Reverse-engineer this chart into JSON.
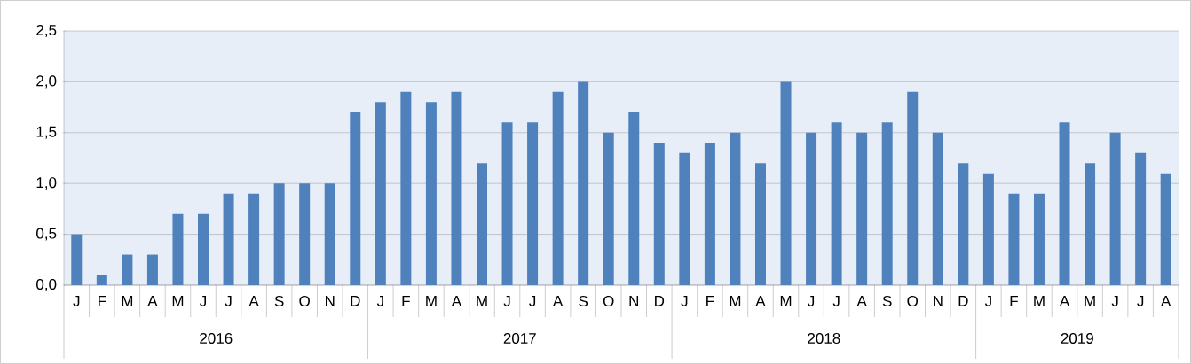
{
  "chart_data": {
    "type": "bar",
    "categories": [
      "J",
      "F",
      "M",
      "A",
      "M",
      "J",
      "J",
      "A",
      "S",
      "O",
      "N",
      "D",
      "J",
      "F",
      "M",
      "A",
      "M",
      "J",
      "J",
      "A",
      "S",
      "O",
      "N",
      "D",
      "J",
      "F",
      "M",
      "A",
      "M",
      "J",
      "J",
      "A",
      "S",
      "O",
      "N",
      "D",
      "J",
      "F",
      "M",
      "A",
      "M",
      "J",
      "J",
      "A"
    ],
    "values": [
      0.5,
      0.1,
      0.3,
      0.3,
      0.7,
      0.7,
      0.9,
      0.9,
      1.0,
      1.0,
      1.0,
      1.7,
      1.8,
      1.9,
      1.8,
      1.9,
      1.2,
      1.6,
      1.6,
      1.9,
      2.0,
      1.5,
      1.7,
      1.4,
      1.3,
      1.4,
      1.5,
      1.2,
      2.0,
      1.5,
      1.6,
      1.5,
      1.6,
      1.9,
      1.5,
      1.2,
      1.1,
      0.9,
      0.9,
      1.6,
      1.2,
      1.5,
      1.3,
      1.1
    ],
    "color": "#4f81bd",
    "annotations": [
      "2016",
      "2017",
      "2018",
      "2019"
    ],
    "ylim": [
      0,
      2.5
    ],
    "yticks": [
      {
        "value": 0,
        "label": "0,0"
      },
      {
        "value": 0.5,
        "label": "0,5"
      },
      {
        "value": 1,
        "label": "1,0"
      },
      {
        "value": 1.5,
        "label": "1,5"
      },
      {
        "value": 2,
        "label": "2,0"
      },
      {
        "value": 2.5,
        "label": "2,5"
      }
    ],
    "grid": "y"
  }
}
